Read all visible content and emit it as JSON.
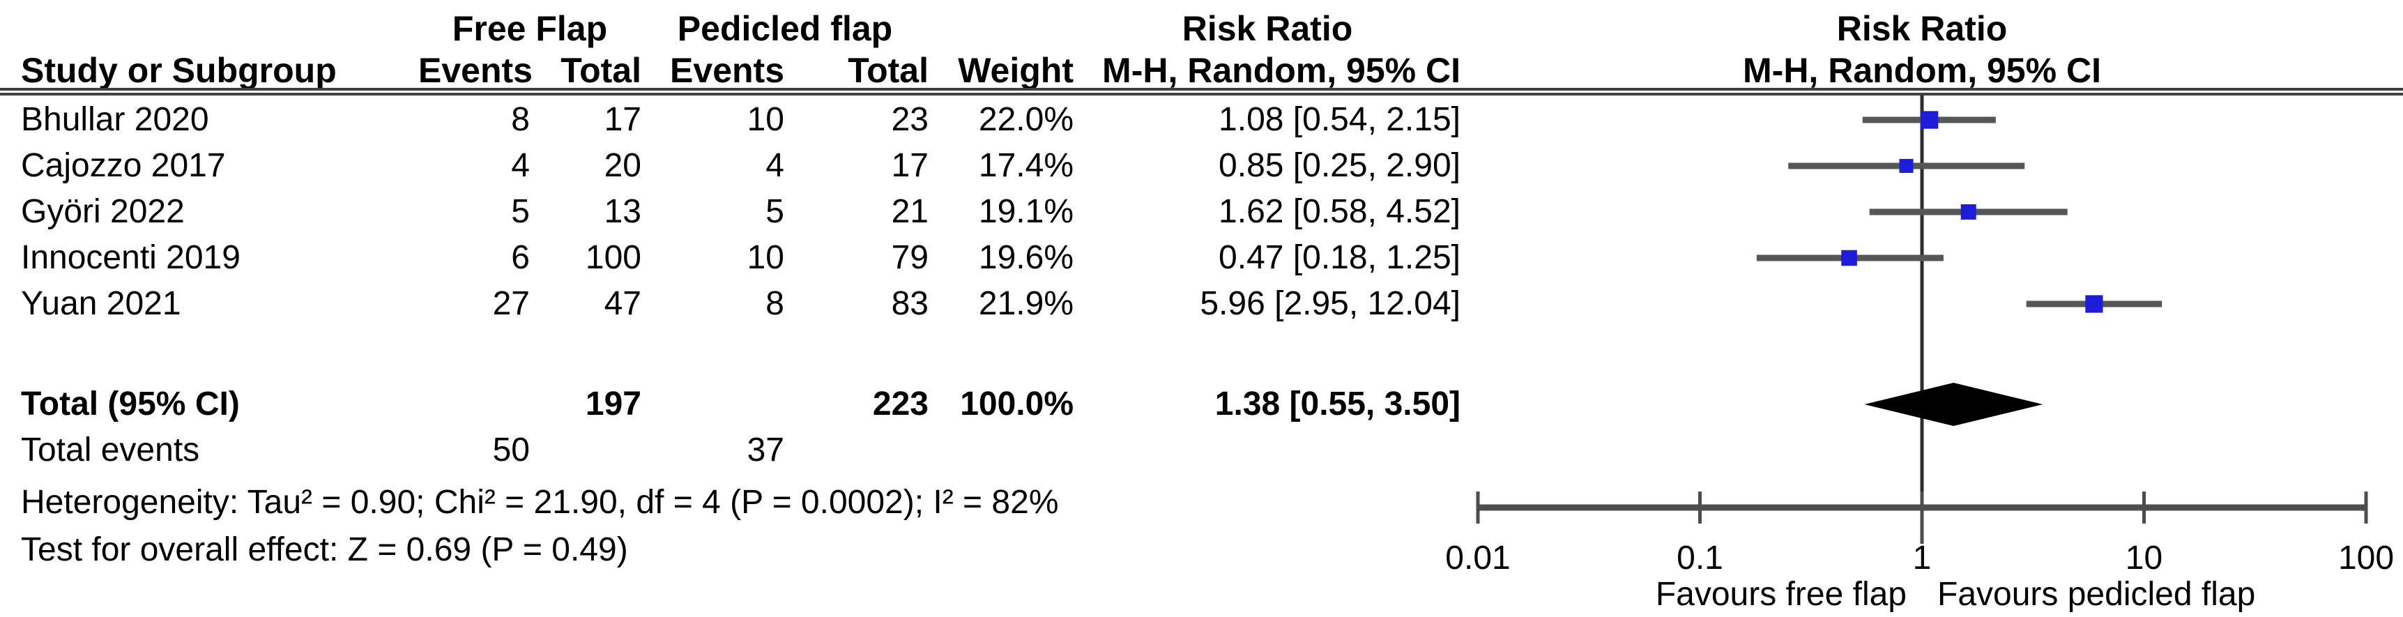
{
  "table": {
    "group_headers": {
      "free_flap": "Free Flap",
      "pedicled_flap": "Pedicled flap",
      "risk_ratio_text": "Risk Ratio",
      "risk_ratio_plot": "Risk Ratio"
    },
    "column_headers": {
      "study": "Study or Subgroup",
      "events1": "Events",
      "total1": "Total",
      "events2": "Events",
      "total2": "Total",
      "weight": "Weight",
      "ci": "M-H, Random, 95% CI",
      "ci_plot": "M-H, Random, 95% CI"
    },
    "rows": [
      {
        "study": "Bhullar 2020",
        "events1": "8",
        "total1": "17",
        "events2": "10",
        "total2": "23",
        "weight": "22.0%",
        "ci": "1.08 [0.54, 2.15]"
      },
      {
        "study": "Cajozzo 2017",
        "events1": "4",
        "total1": "20",
        "events2": "4",
        "total2": "17",
        "weight": "17.4%",
        "ci": "0.85 [0.25, 2.90]"
      },
      {
        "study": "Györi 2022",
        "events1": "5",
        "total1": "13",
        "events2": "5",
        "total2": "21",
        "weight": "19.1%",
        "ci": "1.62 [0.58, 4.52]"
      },
      {
        "study": "Innocenti 2019",
        "events1": "6",
        "total1": "100",
        "events2": "10",
        "total2": "79",
        "weight": "19.6%",
        "ci": "0.47 [0.18, 1.25]"
      },
      {
        "study": "Yuan 2021",
        "events1": "27",
        "total1": "47",
        "events2": "8",
        "total2": "83",
        "weight": "21.9%",
        "ci": "5.96 [2.95, 12.04]"
      }
    ],
    "total_row": {
      "label": "Total (95% CI)",
      "total1": "197",
      "total2": "223",
      "weight": "100.0%",
      "ci": "1.38 [0.55, 3.50]"
    },
    "total_events": {
      "label": "Total events",
      "events1": "50",
      "events2": "37"
    },
    "heterogeneity": "Heterogeneity: Tau² = 0.90; Chi² = 21.90, df = 4 (P = 0.0002); I² = 82%",
    "overall_effect": "Test for overall effect: Z = 0.69 (P = 0.49)"
  },
  "chart_data": {
    "type": "forest",
    "effect_measure": "Risk Ratio",
    "method": "M-H, Random, 95% CI",
    "x_axis": {
      "scale": "log",
      "ticks": [
        0.01,
        0.1,
        1,
        10,
        100
      ],
      "tick_labels": [
        "0.01",
        "0.1",
        "1",
        "10",
        "100"
      ],
      "label_left": "Favours free flap",
      "label_right": "Favours pedicled flap"
    },
    "studies": [
      {
        "name": "Bhullar 2020",
        "rr": 1.08,
        "ci_low": 0.54,
        "ci_high": 2.15,
        "weight_pct": 22.0
      },
      {
        "name": "Cajozzo 2017",
        "rr": 0.85,
        "ci_low": 0.25,
        "ci_high": 2.9,
        "weight_pct": 17.4
      },
      {
        "name": "Györi 2022",
        "rr": 1.62,
        "ci_low": 0.58,
        "ci_high": 4.52,
        "weight_pct": 19.1
      },
      {
        "name": "Innocenti 2019",
        "rr": 0.47,
        "ci_low": 0.18,
        "ci_high": 1.25,
        "weight_pct": 19.6
      },
      {
        "name": "Yuan 2021",
        "rr": 5.96,
        "ci_low": 2.95,
        "ci_high": 12.04,
        "weight_pct": 21.9
      }
    ],
    "total": {
      "label": "Total (95% CI)",
      "rr": 1.38,
      "ci_low": 0.55,
      "ci_high": 3.5,
      "weight_pct": 100.0
    },
    "colors": {
      "square": "#1c1cd9",
      "ci_line": "#565656",
      "diamond": "#000000",
      "axis": "#4d4d4d",
      "center_line": "#2e2e2e",
      "text": "#000000"
    }
  }
}
